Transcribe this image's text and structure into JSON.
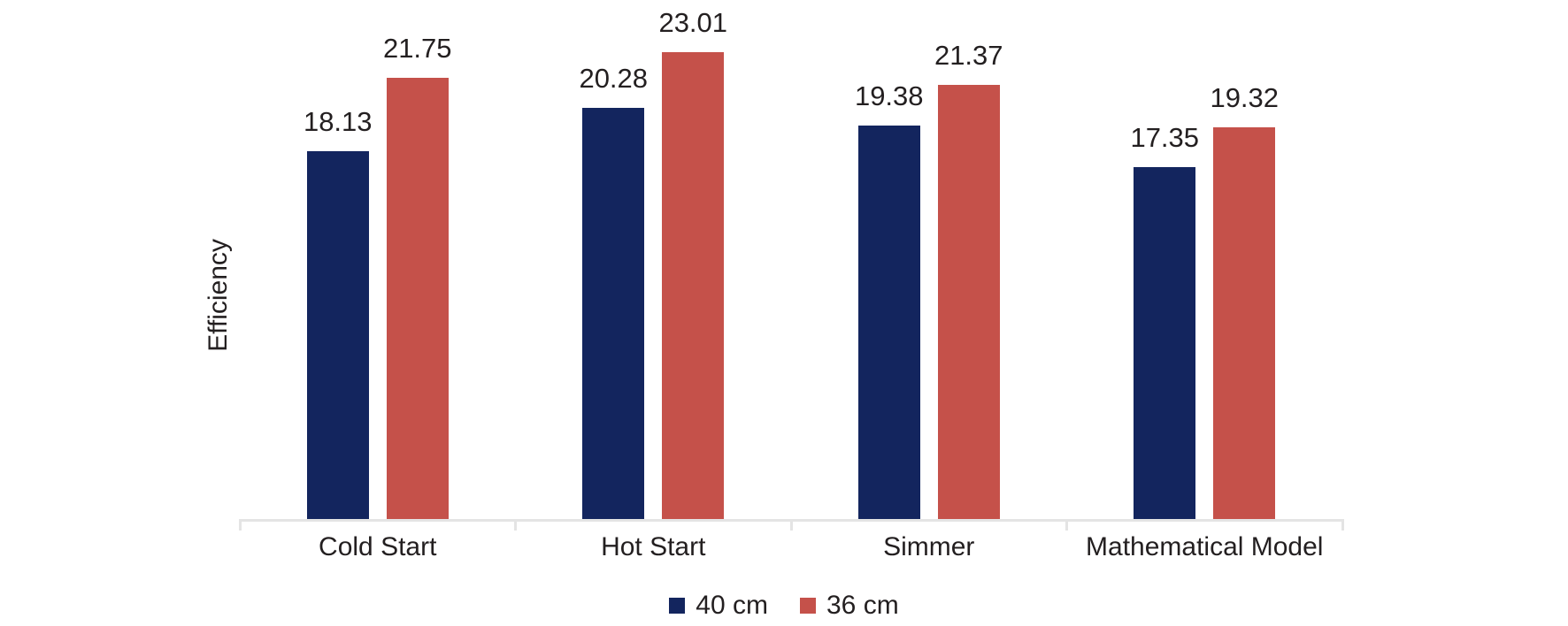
{
  "chart_data": {
    "type": "bar",
    "title": "",
    "xlabel": "",
    "ylabel": "Efficiency",
    "categories": [
      "Cold Start",
      "Hot Start",
      "Simmer",
      "Mathematical Model"
    ],
    "series": [
      {
        "name": "40 cm",
        "color": "#13255E",
        "values": [
          18.13,
          20.28,
          19.38,
          17.35
        ]
      },
      {
        "name": "36 cm",
        "color": "#C5514A",
        "values": [
          21.75,
          23.01,
          21.37,
          19.32
        ]
      }
    ],
    "value_labels": [
      "18.13",
      "21.75",
      "20.28",
      "23.01",
      "19.38",
      "21.37",
      "17.35",
      "19.32"
    ],
    "ylim": [
      0,
      25.5
    ],
    "y_axis_ticks_visible": false,
    "gridlines": false,
    "legend_position": "bottom",
    "axis_line_color": "#E4E4E4",
    "text_color": "#231F20",
    "background_color": "#FFFFFF"
  }
}
